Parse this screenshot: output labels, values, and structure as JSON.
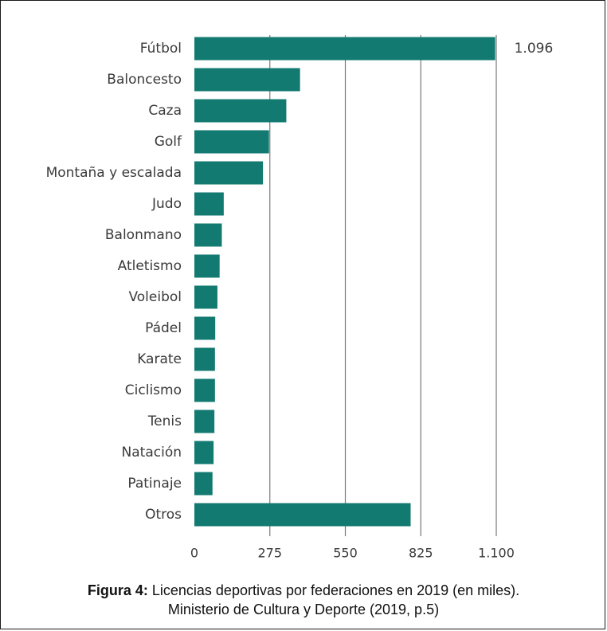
{
  "chart_data": {
    "type": "bar",
    "orientation": "horizontal",
    "categories": [
      "Fútbol",
      "Baloncesto",
      "Caza",
      "Golf",
      "Montaña y escalada",
      "Judo",
      "Balonmano",
      "Atletismo",
      "Voleibol",
      "Pádel",
      "Karate",
      "Ciclismo",
      "Tenis",
      "Natación",
      "Patinaje",
      "Otros"
    ],
    "values": [
      1096,
      385,
      335,
      272,
      250,
      107,
      100,
      92,
      84,
      76,
      75,
      75,
      73,
      70,
      66,
      788
    ],
    "data_labels": [
      {
        "index": 0,
        "text": "1.096"
      }
    ],
    "xlim": [
      0,
      1100
    ],
    "xticks": [
      0,
      275,
      550,
      825,
      1100
    ],
    "xtick_labels": [
      "0",
      "275",
      "550",
      "825",
      "1.100"
    ],
    "grid": "vertical",
    "bar_color": "#127a70",
    "grid_color": "#7a7a7a",
    "legend": "none"
  },
  "caption": {
    "label": "Figura 4:",
    "line1": " Licencias deportivas por federaciones en 2019 (en miles).",
    "line2": "Ministerio de Cultura y Deporte (2019, p.5)"
  }
}
